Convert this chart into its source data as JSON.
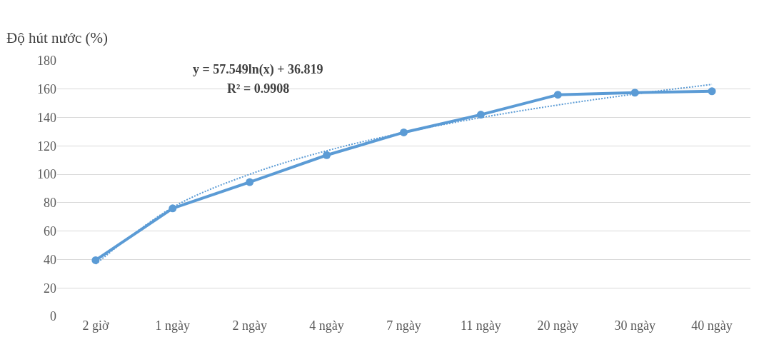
{
  "chart_data": {
    "type": "line",
    "ylabel": "Độ hút nước (%)",
    "categories": [
      "2 giờ",
      "1 ngày",
      "2 ngày",
      "4 ngày",
      "7 ngày",
      "11 ngày",
      "20 ngày",
      "30 ngày",
      "40 ngày"
    ],
    "series": [
      {
        "color": "#5b9bd5",
        "values": [
          39.5,
          76,
          94.5,
          113.5,
          129.5,
          142,
          156,
          157.5,
          158.5
        ],
        "marker": "circle",
        "line_style": "solid"
      },
      {
        "type": "line",
        "color": "#5b9bd5",
        "values": [
          36.8,
          76.7,
          100.0,
          116.6,
          129.4,
          139.9,
          148.8,
          156.5,
          163.3
        ],
        "marker": "none",
        "line_style": "dotted"
      }
    ],
    "ylim": [
      0,
      180
    ],
    "yticks": [
      0,
      20,
      40,
      60,
      80,
      100,
      120,
      140,
      160,
      180
    ],
    "grid": "y",
    "annotations": [
      "y = 57.549ln(x) + 36.819",
      "R² = 0.9908"
    ]
  }
}
